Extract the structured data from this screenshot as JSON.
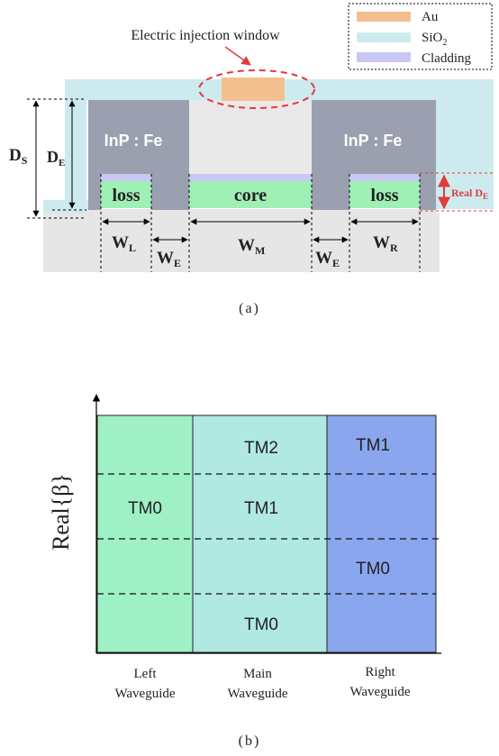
{
  "figure_a": {
    "legend": {
      "au": "Au",
      "sio2_base": "SiO",
      "sio2_sub": "2",
      "cladding": "Cladding"
    },
    "window_label": "Electric injection window",
    "ds_main": "D",
    "ds_sub": "S",
    "de_main": "D",
    "de_sub": "E",
    "inp_left": "InP : Fe",
    "inp_right": "InP : Fe",
    "loss_left": "loss",
    "core": "core",
    "loss_right": "loss",
    "real_de_main": "Real D",
    "real_de_sub": "E",
    "wl_main": "W",
    "wl_sub": "L",
    "we1_main": "W",
    "we1_sub": "E",
    "wm_main": "W",
    "wm_sub": "M",
    "we2_main": "W",
    "we2_sub": "E",
    "wr_main": "W",
    "wr_sub": "R",
    "caption": "(a)",
    "colors": {
      "au": "#f2c08e",
      "sio2": "#cdebee",
      "cladding": "#c8c8f4",
      "inp": "#9aa0b0",
      "loss_core": "#9ef0b4",
      "substrate": "#e6e6e6",
      "window_ring": "#e23b3b"
    }
  },
  "figure_b": {
    "ylabel": "Real{β}",
    "regions": [
      {
        "name": "Left",
        "name2": "Waveguide",
        "color": "#9ff0c4"
      },
      {
        "name": "Main",
        "name2": "Waveguide",
        "color": "#b0e8e2"
      },
      {
        "name": "Right",
        "name2": "Waveguide",
        "color": "#8aa6ee"
      }
    ],
    "modes": {
      "left_tm0": "TM0",
      "main_tm2": "TM2",
      "main_tm1": "TM1",
      "main_tm0": "TM0",
      "right_tm1": "TM1",
      "right_tm0": "TM0"
    },
    "caption": "(b)"
  }
}
